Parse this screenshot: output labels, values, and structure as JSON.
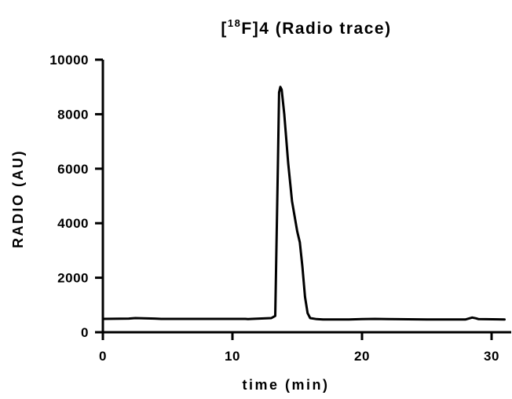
{
  "chart_data": {
    "type": "line",
    "title": {
      "prefix": "[",
      "superscript": "18",
      "suffix": "F]4 (Radio trace)"
    },
    "xlabel": "time (min)",
    "ylabel": "RADIO (AU)",
    "xlim": [
      0,
      31
    ],
    "ylim": [
      0,
      10000
    ],
    "x_ticks": [
      0,
      10,
      20,
      30
    ],
    "y_ticks": [
      0,
      2000,
      4000,
      6000,
      8000,
      10000
    ],
    "x_tick_labels": [
      "0",
      "10",
      "20",
      "30"
    ],
    "y_tick_labels": [
      "0",
      "2000",
      "4000",
      "6000",
      "8000",
      "10000"
    ],
    "grid": false,
    "legend": "none",
    "series": [
      {
        "x": [
          0,
          2,
          2.5,
          4,
          4.5,
          5,
          8,
          11,
          11.2,
          11.5,
          13,
          13.3,
          13.5,
          13.6,
          13.7,
          13.8,
          14.0,
          14.3,
          14.6,
          15.0,
          15.2,
          15.4,
          15.6,
          15.8,
          16.0,
          16.5,
          17.0,
          18,
          19,
          20,
          21,
          22,
          25,
          28,
          28.5,
          28.8,
          29,
          31
        ],
        "y": [
          490,
          500,
          520,
          500,
          490,
          490,
          490,
          490,
          480,
          490,
          520,
          600,
          6000,
          8800,
          9000,
          8900,
          8000,
          6200,
          4800,
          3700,
          3300,
          2400,
          1300,
          700,
          520,
          480,
          470,
          470,
          470,
          480,
          490,
          480,
          470,
          470,
          540,
          510,
          480,
          470
        ]
      }
    ]
  }
}
